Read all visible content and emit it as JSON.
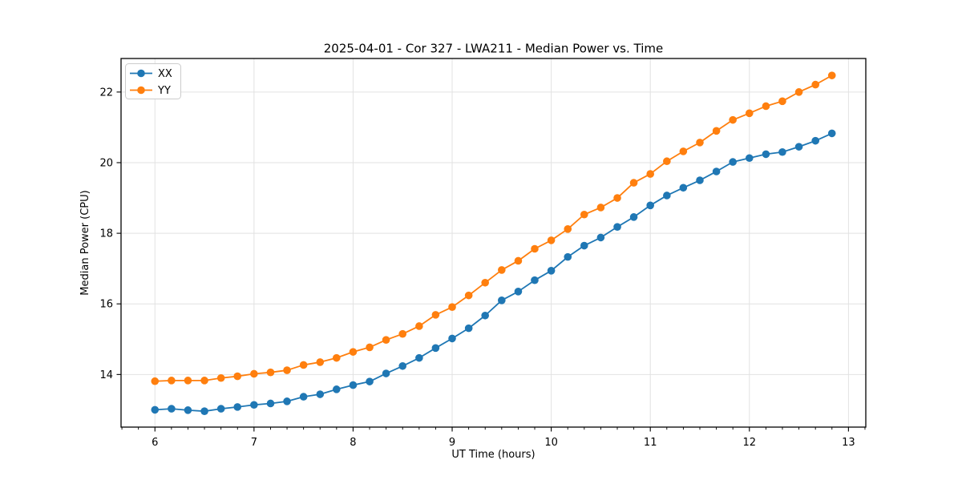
{
  "header": {
    "title": "2025-04-01 - Cor 327 - LWA211 - Median Power vs. Time"
  },
  "chart_data": {
    "type": "line",
    "title": "2025-04-01 - Cor 327 - LWA211 - Median Power vs. Time",
    "xlabel": "UT Time (hours)",
    "ylabel": "Median Power (CPU)",
    "xlim": [
      5.658,
      13.175
    ],
    "ylim": [
      12.51,
      22.95
    ],
    "xticks": [
      6,
      7,
      8,
      9,
      10,
      11,
      12,
      13
    ],
    "yticks": [
      14,
      16,
      18,
      20,
      22
    ],
    "x_minor_step": 0.166667,
    "grid": true,
    "legend_position": "upper left",
    "x": [
      6.0,
      6.167,
      6.333,
      6.5,
      6.667,
      6.833,
      7.0,
      7.167,
      7.333,
      7.5,
      7.667,
      7.833,
      8.0,
      8.167,
      8.333,
      8.5,
      8.667,
      8.833,
      9.0,
      9.167,
      9.333,
      9.5,
      9.667,
      9.833,
      10.0,
      10.167,
      10.333,
      10.5,
      10.667,
      10.833,
      11.0,
      11.167,
      11.333,
      11.5,
      11.667,
      11.833,
      12.0,
      12.167,
      12.333,
      12.5,
      12.667,
      12.833
    ],
    "series": [
      {
        "name": "XX",
        "color": "#1f77b4",
        "marker": "circle",
        "values": [
          13.0,
          13.03,
          12.99,
          12.96,
          13.03,
          13.08,
          13.14,
          13.18,
          13.24,
          13.37,
          13.44,
          13.58,
          13.7,
          13.8,
          14.03,
          14.24,
          14.47,
          14.75,
          15.02,
          15.31,
          15.67,
          16.1,
          16.35,
          16.67,
          16.94,
          17.33,
          17.65,
          17.88,
          18.18,
          18.46,
          18.79,
          19.07,
          19.29,
          19.5,
          19.75,
          20.02,
          20.13,
          20.24,
          20.3,
          20.45,
          20.62,
          20.83
        ]
      },
      {
        "name": "YY",
        "color": "#ff7f0e",
        "marker": "circle",
        "values": [
          13.81,
          13.83,
          13.83,
          13.83,
          13.9,
          13.95,
          14.02,
          14.06,
          14.12,
          14.27,
          14.35,
          14.47,
          14.64,
          14.77,
          14.98,
          15.15,
          15.37,
          15.69,
          15.91,
          16.24,
          16.6,
          16.96,
          17.22,
          17.56,
          17.8,
          18.12,
          18.53,
          18.73,
          19.0,
          19.43,
          19.68,
          20.04,
          20.32,
          20.57,
          20.9,
          21.21,
          21.4,
          21.6,
          21.74,
          22.0,
          22.21,
          22.47
        ]
      }
    ]
  },
  "colors": {
    "series_xx": "#1f77b4",
    "series_yy": "#ff7f0e",
    "grid": "#e2e2e2",
    "spine": "#000000",
    "background": "#ffffff",
    "legend_border": "#cccccc"
  }
}
